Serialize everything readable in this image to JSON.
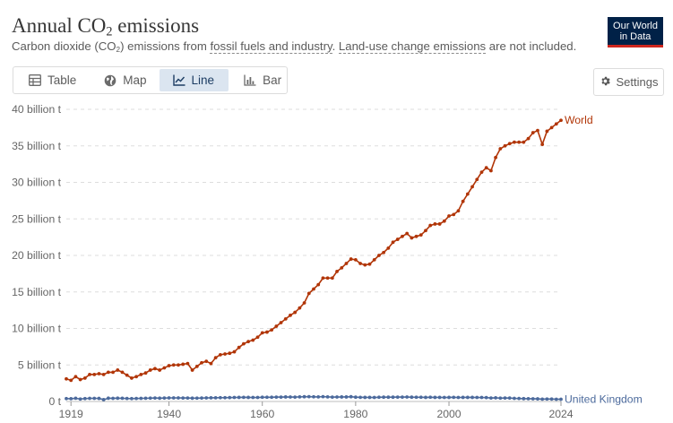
{
  "header": {
    "title_main": "Annual CO",
    "title_sub": "2",
    "title_rest": " emissions",
    "subtitle_a": "Carbon dioxide (CO",
    "subtitle_sub": "2",
    "subtitle_b": ") emissions from ",
    "subtitle_link1": "fossil fuels and industry",
    "subtitle_c": ". ",
    "subtitle_link2": "Land-use change emissions",
    "subtitle_d": " are not included."
  },
  "logo": {
    "line1": "Our World",
    "line2": "in Data",
    "bg_color": "#002147",
    "accent_color": "#ce261e"
  },
  "tabs": [
    {
      "label": "Table",
      "icon": "table-icon",
      "active": false
    },
    {
      "label": "Map",
      "icon": "globe-icon",
      "active": false
    },
    {
      "label": "Line",
      "icon": "line-chart-icon",
      "active": true
    },
    {
      "label": "Bar",
      "icon": "bar-chart-icon",
      "active": false
    }
  ],
  "settings": {
    "label": "Settings",
    "icon": "gear-icon"
  },
  "chart_data": {
    "type": "line",
    "title": "Annual CO₂ emissions",
    "ylim": [
      0,
      40
    ],
    "xlim": [
      1918,
      2024
    ],
    "grid": "horizontal",
    "y_ticks": [
      {
        "value": 0,
        "label": "0 t"
      },
      {
        "value": 5,
        "label": "5 billion t"
      },
      {
        "value": 10,
        "label": "10 billion t"
      },
      {
        "value": 15,
        "label": "15 billion t"
      },
      {
        "value": 20,
        "label": "20 billion t"
      },
      {
        "value": 25,
        "label": "25 billion t"
      },
      {
        "value": 30,
        "label": "30 billion t"
      },
      {
        "value": 35,
        "label": "35 billion t"
      },
      {
        "value": 40,
        "label": "40 billion t"
      }
    ],
    "x_ticks": [
      {
        "value": 1919,
        "label": "1919"
      },
      {
        "value": 1940,
        "label": "1940"
      },
      {
        "value": 1960,
        "label": "1960"
      },
      {
        "value": 1980,
        "label": "1980"
      },
      {
        "value": 2000,
        "label": "2000"
      },
      {
        "value": 2024,
        "label": "2024"
      }
    ],
    "series": [
      {
        "name": "World",
        "color": "#b13507",
        "points": [
          [
            1918,
            3.1
          ],
          [
            1919,
            2.9
          ],
          [
            1920,
            3.4
          ],
          [
            1921,
            3.0
          ],
          [
            1922,
            3.2
          ],
          [
            1923,
            3.7
          ],
          [
            1924,
            3.7
          ],
          [
            1925,
            3.8
          ],
          [
            1926,
            3.7
          ],
          [
            1927,
            4.0
          ],
          [
            1928,
            4.0
          ],
          [
            1929,
            4.3
          ],
          [
            1930,
            4.0
          ],
          [
            1931,
            3.6
          ],
          [
            1932,
            3.2
          ],
          [
            1933,
            3.4
          ],
          [
            1934,
            3.7
          ],
          [
            1935,
            3.9
          ],
          [
            1936,
            4.3
          ],
          [
            1937,
            4.5
          ],
          [
            1938,
            4.3
          ],
          [
            1939,
            4.6
          ],
          [
            1940,
            4.9
          ],
          [
            1941,
            5.0
          ],
          [
            1942,
            5.0
          ],
          [
            1943,
            5.1
          ],
          [
            1944,
            5.2
          ],
          [
            1945,
            4.3
          ],
          [
            1946,
            4.8
          ],
          [
            1947,
            5.3
          ],
          [
            1948,
            5.5
          ],
          [
            1949,
            5.2
          ],
          [
            1950,
            6.0
          ],
          [
            1951,
            6.4
          ],
          [
            1952,
            6.5
          ],
          [
            1953,
            6.6
          ],
          [
            1954,
            6.8
          ],
          [
            1955,
            7.4
          ],
          [
            1956,
            7.9
          ],
          [
            1957,
            8.2
          ],
          [
            1958,
            8.4
          ],
          [
            1959,
            8.8
          ],
          [
            1960,
            9.4
          ],
          [
            1961,
            9.5
          ],
          [
            1962,
            9.8
          ],
          [
            1963,
            10.3
          ],
          [
            1964,
            10.8
          ],
          [
            1965,
            11.3
          ],
          [
            1966,
            11.8
          ],
          [
            1967,
            12.2
          ],
          [
            1968,
            12.8
          ],
          [
            1969,
            13.5
          ],
          [
            1970,
            14.8
          ],
          [
            1971,
            15.4
          ],
          [
            1972,
            16.0
          ],
          [
            1973,
            16.9
          ],
          [
            1974,
            16.9
          ],
          [
            1975,
            16.9
          ],
          [
            1976,
            17.8
          ],
          [
            1977,
            18.3
          ],
          [
            1978,
            18.9
          ],
          [
            1979,
            19.5
          ],
          [
            1980,
            19.4
          ],
          [
            1981,
            18.9
          ],
          [
            1982,
            18.7
          ],
          [
            1983,
            18.8
          ],
          [
            1984,
            19.4
          ],
          [
            1985,
            20.0
          ],
          [
            1986,
            20.4
          ],
          [
            1987,
            21.0
          ],
          [
            1988,
            21.8
          ],
          [
            1989,
            22.2
          ],
          [
            1990,
            22.6
          ],
          [
            1991,
            23.0
          ],
          [
            1992,
            22.4
          ],
          [
            1993,
            22.6
          ],
          [
            1994,
            22.8
          ],
          [
            1995,
            23.4
          ],
          [
            1996,
            24.1
          ],
          [
            1997,
            24.3
          ],
          [
            1998,
            24.3
          ],
          [
            1999,
            24.7
          ],
          [
            2000,
            25.4
          ],
          [
            2001,
            25.6
          ],
          [
            2002,
            26.1
          ],
          [
            2003,
            27.4
          ],
          [
            2004,
            28.4
          ],
          [
            2005,
            29.4
          ],
          [
            2006,
            30.4
          ],
          [
            2007,
            31.4
          ],
          [
            2008,
            32.0
          ],
          [
            2009,
            31.6
          ],
          [
            2010,
            33.4
          ],
          [
            2011,
            34.6
          ],
          [
            2012,
            35.0
          ],
          [
            2013,
            35.3
          ],
          [
            2014,
            35.5
          ],
          [
            2015,
            35.5
          ],
          [
            2016,
            35.5
          ],
          [
            2017,
            36.0
          ],
          [
            2018,
            36.8
          ],
          [
            2019,
            37.1
          ],
          [
            2020,
            35.2
          ],
          [
            2021,
            37.0
          ],
          [
            2022,
            37.5
          ],
          [
            2023,
            38.0
          ],
          [
            2024,
            38.5
          ]
        ]
      },
      {
        "name": "United Kingdom",
        "color": "#4c6a9c",
        "points": [
          [
            1918,
            0.4
          ],
          [
            1919,
            0.38
          ],
          [
            1920,
            0.44
          ],
          [
            1921,
            0.34
          ],
          [
            1922,
            0.4
          ],
          [
            1923,
            0.43
          ],
          [
            1924,
            0.43
          ],
          [
            1925,
            0.42
          ],
          [
            1926,
            0.25
          ],
          [
            1927,
            0.45
          ],
          [
            1928,
            0.43
          ],
          [
            1929,
            0.45
          ],
          [
            1930,
            0.44
          ],
          [
            1931,
            0.41
          ],
          [
            1932,
            0.4
          ],
          [
            1933,
            0.41
          ],
          [
            1934,
            0.43
          ],
          [
            1935,
            0.44
          ],
          [
            1936,
            0.46
          ],
          [
            1937,
            0.48
          ],
          [
            1938,
            0.45
          ],
          [
            1939,
            0.47
          ],
          [
            1940,
            0.49
          ],
          [
            1941,
            0.49
          ],
          [
            1942,
            0.49
          ],
          [
            1943,
            0.48
          ],
          [
            1944,
            0.48
          ],
          [
            1945,
            0.45
          ],
          [
            1946,
            0.46
          ],
          [
            1947,
            0.47
          ],
          [
            1948,
            0.49
          ],
          [
            1949,
            0.5
          ],
          [
            1950,
            0.51
          ],
          [
            1951,
            0.52
          ],
          [
            1952,
            0.52
          ],
          [
            1953,
            0.53
          ],
          [
            1954,
            0.55
          ],
          [
            1955,
            0.56
          ],
          [
            1956,
            0.57
          ],
          [
            1957,
            0.56
          ],
          [
            1958,
            0.55
          ],
          [
            1959,
            0.55
          ],
          [
            1960,
            0.58
          ],
          [
            1961,
            0.58
          ],
          [
            1962,
            0.58
          ],
          [
            1963,
            0.6
          ],
          [
            1964,
            0.6
          ],
          [
            1965,
            0.62
          ],
          [
            1966,
            0.61
          ],
          [
            1967,
            0.6
          ],
          [
            1968,
            0.63
          ],
          [
            1969,
            0.65
          ],
          [
            1970,
            0.66
          ],
          [
            1971,
            0.64
          ],
          [
            1972,
            0.63
          ],
          [
            1973,
            0.66
          ],
          [
            1974,
            0.63
          ],
          [
            1975,
            0.6
          ],
          [
            1976,
            0.61
          ],
          [
            1977,
            0.62
          ],
          [
            1978,
            0.62
          ],
          [
            1979,
            0.65
          ],
          [
            1980,
            0.59
          ],
          [
            1981,
            0.57
          ],
          [
            1982,
            0.56
          ],
          [
            1983,
            0.56
          ],
          [
            1984,
            0.55
          ],
          [
            1985,
            0.58
          ],
          [
            1986,
            0.59
          ],
          [
            1987,
            0.59
          ],
          [
            1988,
            0.59
          ],
          [
            1989,
            0.6
          ],
          [
            1990,
            0.6
          ],
          [
            1991,
            0.61
          ],
          [
            1992,
            0.59
          ],
          [
            1993,
            0.58
          ],
          [
            1994,
            0.58
          ],
          [
            1995,
            0.56
          ],
          [
            1996,
            0.58
          ],
          [
            1997,
            0.56
          ],
          [
            1998,
            0.56
          ],
          [
            1999,
            0.55
          ],
          [
            2000,
            0.56
          ],
          [
            2001,
            0.57
          ],
          [
            2002,
            0.55
          ],
          [
            2003,
            0.56
          ],
          [
            2004,
            0.56
          ],
          [
            2005,
            0.56
          ],
          [
            2006,
            0.55
          ],
          [
            2007,
            0.55
          ],
          [
            2008,
            0.53
          ],
          [
            2009,
            0.48
          ],
          [
            2010,
            0.5
          ],
          [
            2011,
            0.46
          ],
          [
            2012,
            0.48
          ],
          [
            2013,
            0.47
          ],
          [
            2014,
            0.43
          ],
          [
            2015,
            0.41
          ],
          [
            2016,
            0.39
          ],
          [
            2017,
            0.38
          ],
          [
            2018,
            0.37
          ],
          [
            2019,
            0.36
          ],
          [
            2020,
            0.32
          ],
          [
            2021,
            0.34
          ],
          [
            2022,
            0.33
          ],
          [
            2023,
            0.31
          ],
          [
            2024,
            0.3
          ]
        ]
      }
    ]
  }
}
